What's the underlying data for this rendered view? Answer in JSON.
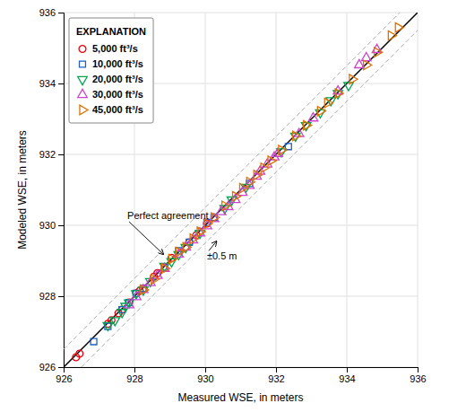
{
  "chart_data": {
    "type": "scatter",
    "xlabel": "Measured WSE, in meters",
    "ylabel": "Modeled WSE, in meters",
    "xlim": [
      926,
      936
    ],
    "ylim": [
      926,
      936
    ],
    "xticks": [
      926,
      928,
      930,
      932,
      934,
      936
    ],
    "yticks": [
      926,
      928,
      930,
      932,
      934,
      936
    ],
    "grid": true,
    "legend": "upper left",
    "legend_title": "EXPLANATION",
    "lines": [
      {
        "x": [
          926,
          935.5
        ],
        "values": [
          926.5,
          936
        ],
        "color": "#aaaaaa",
        "line_style": "dashed"
      },
      {
        "x": [
          926.5,
          936
        ],
        "values": [
          926,
          935.5
        ],
        "color": "#aaaaaa",
        "line_style": "dashed"
      },
      {
        "x": [
          926,
          936
        ],
        "values": [
          926,
          936
        ],
        "color": "#000000",
        "line_style": "solid"
      }
    ],
    "series": [
      {
        "name": "5,000 ft³/s",
        "color": "#e8000d",
        "marker": "circle",
        "x": [
          926.35,
          926.45,
          927.25,
          927.35,
          927.55,
          927.65,
          927.85,
          928.05,
          928.15,
          928.55,
          928.65,
          929.05,
          929.55,
          929.75,
          930.05
        ],
        "values": [
          926.28,
          926.38,
          927.22,
          927.32,
          927.52,
          927.62,
          927.82,
          928.08,
          928.15,
          928.55,
          928.65,
          929.08,
          929.52,
          929.72,
          930.05
        ]
      },
      {
        "name": "10,000 ft³/s",
        "color": "#1f5fc2",
        "marker": "square",
        "x": [
          926.85,
          927.25,
          927.65,
          927.85,
          928.05,
          928.25,
          928.85,
          929.25,
          929.55,
          930.05,
          930.25,
          931.25,
          932.35
        ],
        "values": [
          926.72,
          927.15,
          927.62,
          927.82,
          928.08,
          928.22,
          928.82,
          929.28,
          929.52,
          930.08,
          930.22,
          931.18,
          932.22
        ]
      },
      {
        "name": "20,000 ft³/s",
        "color": "#00a550",
        "marker": "triangle-down",
        "x": [
          927.25,
          927.45,
          927.65,
          927.75,
          927.85,
          928.05,
          928.25,
          928.45,
          928.85,
          929.05,
          929.25,
          929.45,
          929.85,
          930.55,
          930.75,
          931.15,
          932.15,
          932.55,
          932.85,
          933.25,
          933.55,
          933.75,
          934.05
        ],
        "values": [
          927.18,
          927.32,
          927.55,
          927.72,
          927.82,
          928.08,
          928.18,
          928.42,
          928.85,
          928.98,
          929.18,
          929.38,
          929.78,
          930.48,
          930.72,
          931.08,
          932.08,
          932.52,
          932.82,
          933.18,
          933.52,
          933.72,
          933.95
        ]
      },
      {
        "name": "30,000 ft³/s",
        "color": "#cc44cc",
        "marker": "triangle-up",
        "x": [
          927.85,
          928.05,
          928.25,
          928.45,
          928.65,
          928.85,
          929.25,
          929.45,
          929.65,
          929.85,
          930.05,
          930.25,
          930.45,
          930.65,
          930.85,
          931.05,
          931.25,
          931.45,
          931.55,
          931.75,
          931.95,
          932.05,
          932.65,
          933.05,
          933.75,
          934.35,
          934.55,
          934.85
        ],
        "values": [
          927.75,
          927.98,
          928.18,
          928.38,
          928.58,
          928.78,
          929.18,
          929.38,
          929.58,
          929.78,
          929.98,
          930.18,
          930.38,
          930.52,
          930.72,
          930.92,
          931.12,
          931.38,
          931.52,
          931.72,
          931.92,
          932.02,
          932.58,
          933.02,
          933.78,
          934.52,
          934.72,
          934.95
        ]
      },
      {
        "name": "45,000 ft³/s",
        "color": "#e07000",
        "marker": "triangle-right",
        "x": [
          928.25,
          928.55,
          928.85,
          929.05,
          929.25,
          929.45,
          929.65,
          929.85,
          930.05,
          930.25,
          930.55,
          930.85,
          931.05,
          931.25,
          931.45,
          931.65,
          931.85,
          932.15,
          932.55,
          932.85,
          933.25,
          933.45,
          933.75,
          934.15,
          934.55,
          934.85,
          935.25,
          935.45
        ],
        "values": [
          928.18,
          928.48,
          928.78,
          929.05,
          929.25,
          929.38,
          929.62,
          929.82,
          930.05,
          930.22,
          930.55,
          930.82,
          931.05,
          931.22,
          931.42,
          931.62,
          931.82,
          932.12,
          932.52,
          932.82,
          933.22,
          933.45,
          933.72,
          934.12,
          934.52,
          934.88,
          935.35,
          935.58
        ]
      }
    ],
    "annotations": [
      {
        "text": "Perfect agreement",
        "xy": [
          928.82,
          929.18
        ],
        "xytext": [
          927.8,
          930.1
        ]
      },
      {
        "text": "±0.5 m",
        "xy": [
          930.32,
          929.55
        ],
        "xytext": [
          930.05,
          929.28
        ]
      }
    ]
  }
}
